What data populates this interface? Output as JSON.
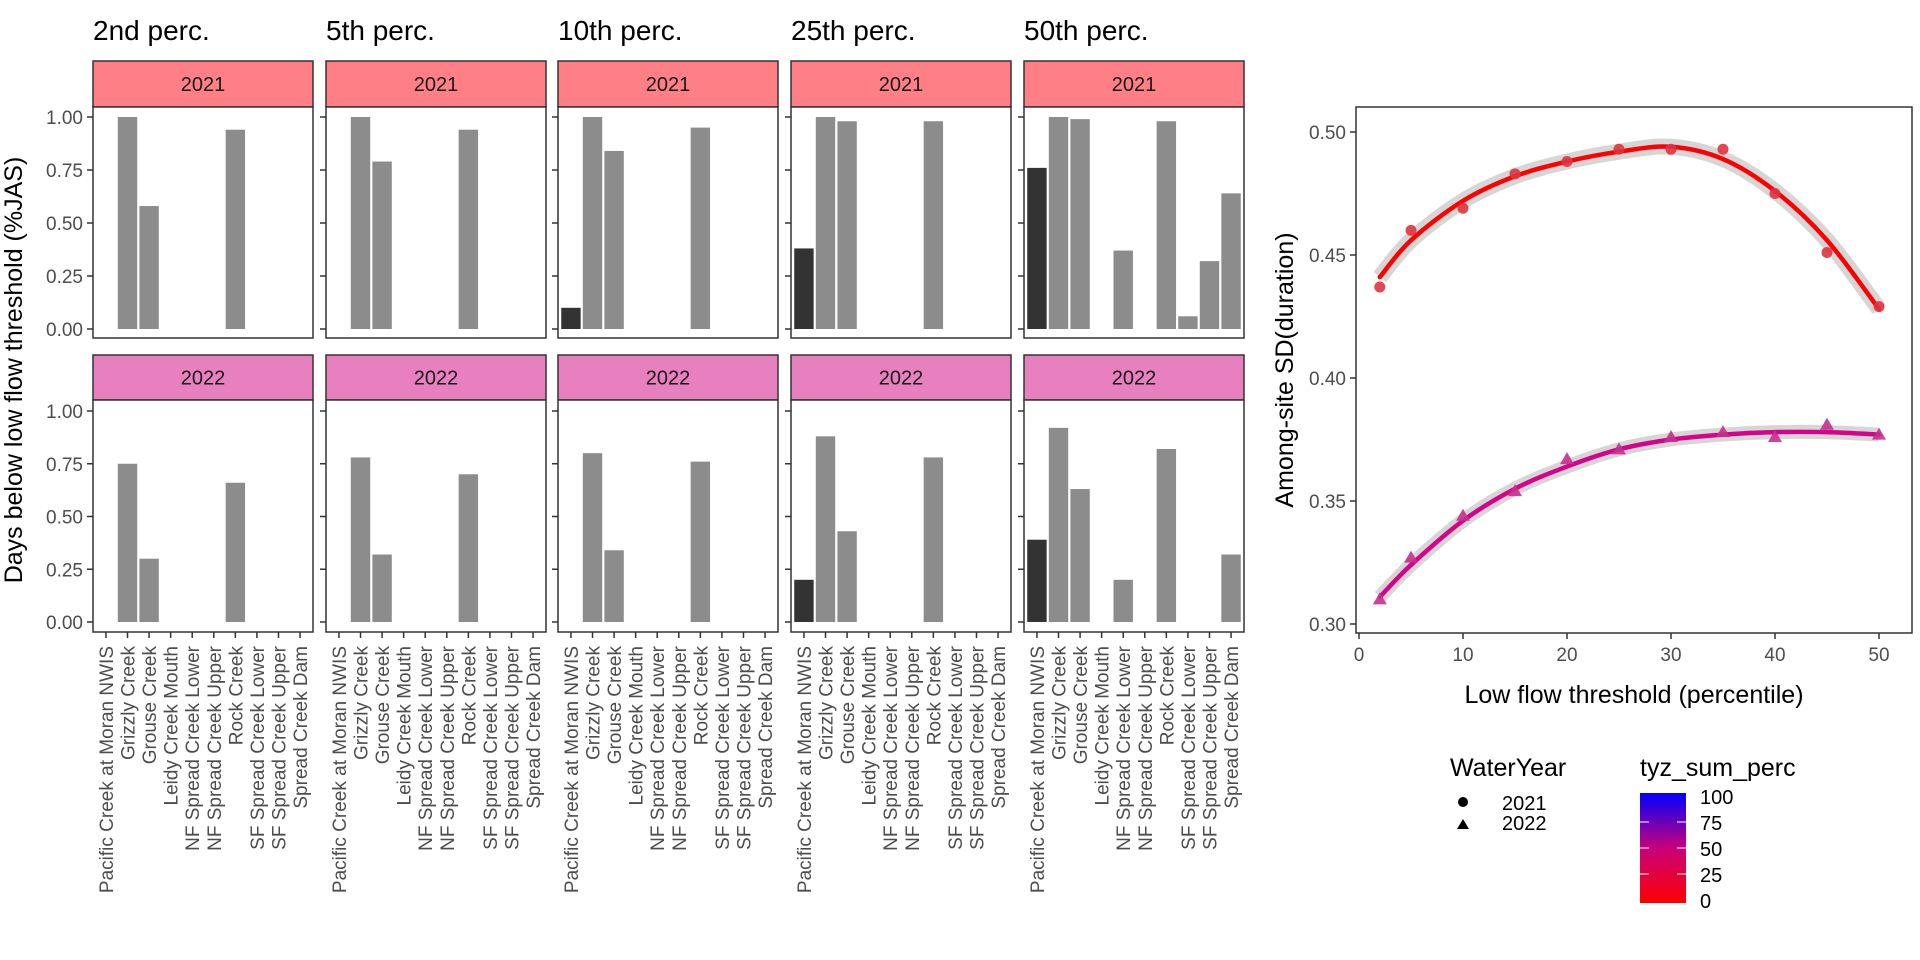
{
  "chart_data": [
    {
      "type": "bar",
      "layout": "facet grid: columns = low flow threshold percentile, rows = WaterYear",
      "ylabel": "Days below low flow threshold (%JAS)",
      "xlabel": "",
      "ylim": [
        0,
        1.0
      ],
      "yticks": [
        "0.00",
        "0.25",
        "0.50",
        "0.75",
        "1.00"
      ],
      "categories": [
        "Pacific Creek at Moran NWIS",
        "Grizzly Creek",
        "Grouse Creek",
        "Leidy Creek Mouth",
        "NF Spread Creek Lower",
        "NF Spread Creek Upper",
        "Rock Creek",
        "SF Spread Creek Lower",
        "SF Spread Creek Upper",
        "Spread Creek Dam"
      ],
      "highlight_category": "Pacific Creek at Moran NWIS",
      "bar_colors": {
        "default": "#8c8c8c",
        "highlight": "#333333"
      },
      "columns": [
        {
          "title": "2nd perc.",
          "percentile": 2
        },
        {
          "title": "5th perc.",
          "percentile": 5
        },
        {
          "title": "10th perc.",
          "percentile": 10
        },
        {
          "title": "25th perc.",
          "percentile": 25
        },
        {
          "title": "50th perc.",
          "percentile": 50
        }
      ],
      "rows": [
        {
          "label": "2021",
          "strip_color": "#ff7f86"
        },
        {
          "label": "2022",
          "strip_color": "#e87fbe"
        }
      ],
      "values": {
        "2021": [
          [
            0,
            1.0,
            0.58,
            0,
            0,
            0,
            0.94,
            0,
            0,
            0
          ],
          [
            0,
            1.0,
            0.79,
            0,
            0,
            0,
            0.94,
            0,
            0,
            0
          ],
          [
            0.1,
            1.0,
            0.84,
            0,
            0,
            0,
            0.95,
            0,
            0,
            0
          ],
          [
            0.38,
            1.0,
            0.98,
            0,
            0,
            0,
            0.98,
            0,
            0,
            0
          ],
          [
            0.76,
            1.0,
            0.99,
            0,
            0.37,
            0,
            0.98,
            0.06,
            0.32,
            0.64
          ]
        ],
        "2022": [
          [
            0,
            0.75,
            0.3,
            0,
            0,
            0,
            0.66,
            0,
            0,
            0
          ],
          [
            0,
            0.78,
            0.32,
            0,
            0,
            0,
            0.7,
            0,
            0,
            0
          ],
          [
            0,
            0.8,
            0.34,
            0,
            0,
            0,
            0.76,
            0,
            0,
            0
          ],
          [
            0.2,
            0.88,
            0.43,
            0,
            0,
            0,
            0.78,
            0,
            0,
            0
          ],
          [
            0.39,
            0.92,
            0.63,
            0,
            0.2,
            0,
            0.82,
            0,
            0,
            0.32
          ]
        ]
      }
    },
    {
      "type": "scatter",
      "with_smooth": true,
      "xlabel": "Low flow threshold (percentile)",
      "ylabel": "Among-site SD(duration)",
      "xlim": [
        0,
        52
      ],
      "ylim": [
        0.297,
        0.509
      ],
      "xticks": [
        0,
        10,
        20,
        30,
        40,
        50
      ],
      "yticks": [
        0.3,
        0.35,
        0.4,
        0.45,
        0.5
      ],
      "ytick_labels": [
        "0.30",
        "0.35",
        "0.40",
        "0.45",
        "0.50"
      ],
      "x": [
        2,
        5,
        10,
        15,
        20,
        25,
        30,
        35,
        40,
        45,
        50
      ],
      "series": [
        {
          "name": "2021",
          "shape": "circle",
          "color": "#ff0000",
          "point_color": "#e0333f",
          "values": [
            0.437,
            0.46,
            0.469,
            0.483,
            0.488,
            0.493,
            0.493,
            0.493,
            0.475,
            0.451,
            0.429
          ],
          "smooth": [
            0.441,
            0.456,
            0.472,
            0.482,
            0.488,
            0.492,
            0.494,
            0.489,
            0.476,
            0.456,
            0.428
          ]
        },
        {
          "name": "2022",
          "shape": "triangle",
          "color": "#d6038a",
          "point_color": "#c7308f",
          "values": [
            0.31,
            0.327,
            0.344,
            0.354,
            0.367,
            0.371,
            0.376,
            0.378,
            0.376,
            0.381,
            0.377
          ],
          "smooth": [
            0.311,
            0.324,
            0.342,
            0.355,
            0.364,
            0.371,
            0.375,
            0.377,
            0.378,
            0.378,
            0.377
          ]
        }
      ],
      "legend": {
        "shape_title": "WaterYear",
        "shape_entries": [
          "2021",
          "2022"
        ],
        "color_title": "tyz_sum_perc",
        "color_range": [
          0,
          100
        ],
        "color_ticks": [
          "0",
          "25",
          "50",
          "75",
          "100"
        ],
        "color_low": "#ff0000",
        "color_high": "#0000ff",
        "placement": "bottom"
      }
    }
  ]
}
